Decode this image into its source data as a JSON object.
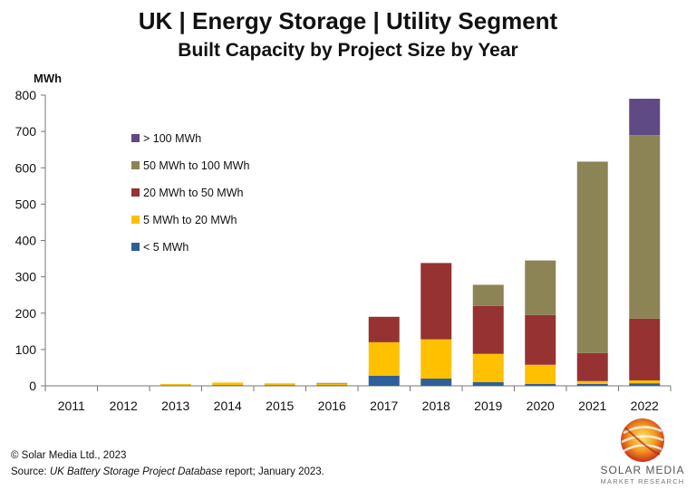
{
  "title": "UK | Energy Storage | Utility Segment",
  "subtitle": "Built Capacity by Project Size by Year",
  "footer": {
    "copyright": "© Solar Media Ltd., 2023",
    "source_prefix": "Source: ",
    "source_report": "UK Battery Storage Project Database",
    "source_suffix": " report; January 2023."
  },
  "logo": {
    "name": "SOLAR MEDIA",
    "tagline": "MARKET RESEARCH"
  },
  "colors": {
    "lt5": "#2e5f9a",
    "5to20": "#ffc000",
    "20to50": "#963232",
    "50to100": "#8c8455",
    "gt100": "#5f4a85"
  },
  "chart_data": {
    "type": "bar",
    "stacked": true,
    "ylabel": "MWh",
    "ylim": [
      0,
      800
    ],
    "yticks": [
      0,
      100,
      200,
      300,
      400,
      500,
      600,
      700,
      800
    ],
    "grid": false,
    "legend_position": "top-left",
    "categories": [
      "2011",
      "2012",
      "2013",
      "2014",
      "2015",
      "2016",
      "2017",
      "2018",
      "2019",
      "2020",
      "2021",
      "2022"
    ],
    "series": [
      {
        "name": "< 5 MWh",
        "color_key": "lt5",
        "values": [
          0,
          0,
          1,
          2,
          2,
          2,
          28,
          20,
          10,
          5,
          5,
          7
        ]
      },
      {
        "name": "5 MWh to 20 MWh",
        "color_key": "5to20",
        "values": [
          0,
          0,
          4,
          7,
          5,
          4,
          92,
          108,
          78,
          53,
          8,
          8
        ]
      },
      {
        "name": "20 MWh to 50 MWh",
        "color_key": "20to50",
        "values": [
          0,
          0,
          0,
          0,
          0,
          0,
          70,
          210,
          132,
          137,
          77,
          170
        ]
      },
      {
        "name": "50 MWh to 100 MWh",
        "color_key": "50to100",
        "values": [
          0,
          0,
          0,
          0,
          0,
          2,
          0,
          0,
          58,
          150,
          527,
          505
        ]
      },
      {
        "name": "> 100 MWh",
        "color_key": "gt100",
        "values": [
          0,
          0,
          0,
          0,
          0,
          0,
          0,
          0,
          0,
          0,
          0,
          100
        ]
      }
    ]
  }
}
